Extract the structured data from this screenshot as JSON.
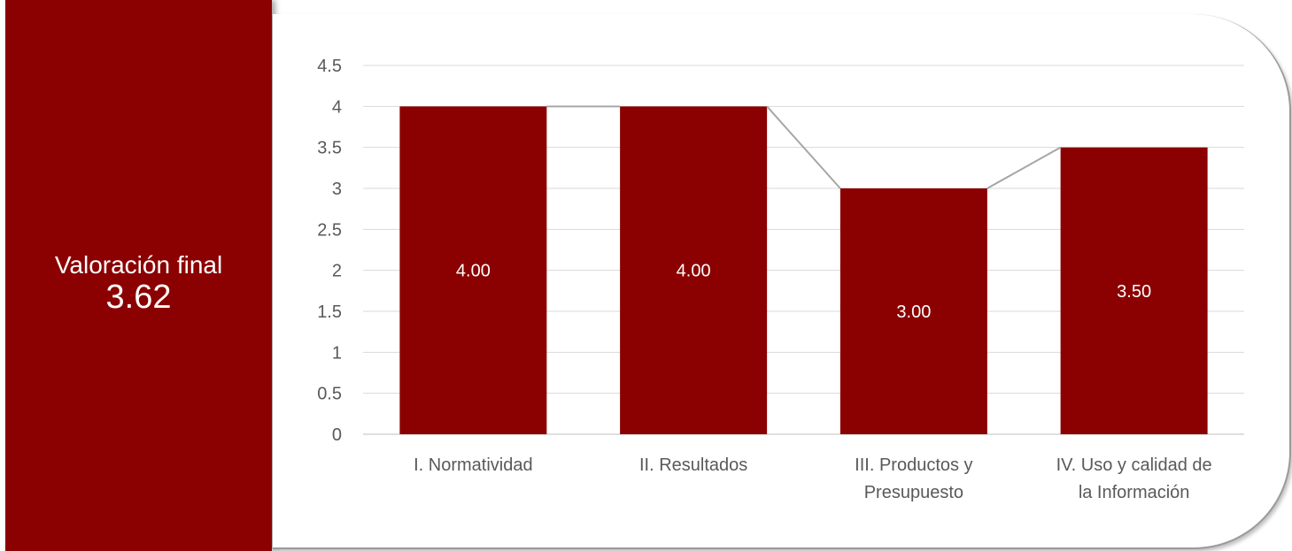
{
  "summary": {
    "label": "Valoración final",
    "value": "3.62"
  },
  "colors": {
    "bar": "#8b0000",
    "line": "#a6a6a6",
    "grid": "#d9d9d9",
    "text": "#595959"
  },
  "chart_data": {
    "type": "bar",
    "categories": [
      [
        "I. Normatividad"
      ],
      [
        "II. Resultados"
      ],
      [
        "III. Productos y",
        "Presupuesto"
      ],
      [
        "IV. Uso y calidad de",
        "la Información"
      ]
    ],
    "values": [
      4.0,
      4.0,
      3.0,
      3.5
    ],
    "data_labels": [
      "4.00",
      "4.00",
      "3.00",
      "3.50"
    ],
    "overlay_line": true,
    "ylim": [
      0,
      4.5
    ],
    "yticks": [
      0,
      0.5,
      1,
      1.5,
      2,
      2.5,
      3,
      3.5,
      4,
      4.5
    ],
    "ytick_labels": [
      "0",
      "0.5",
      "1",
      "1.5",
      "2",
      "2.5",
      "3",
      "3.5",
      "4",
      "4.5"
    ],
    "grid": true,
    "title": "",
    "xlabel": "",
    "ylabel": ""
  }
}
